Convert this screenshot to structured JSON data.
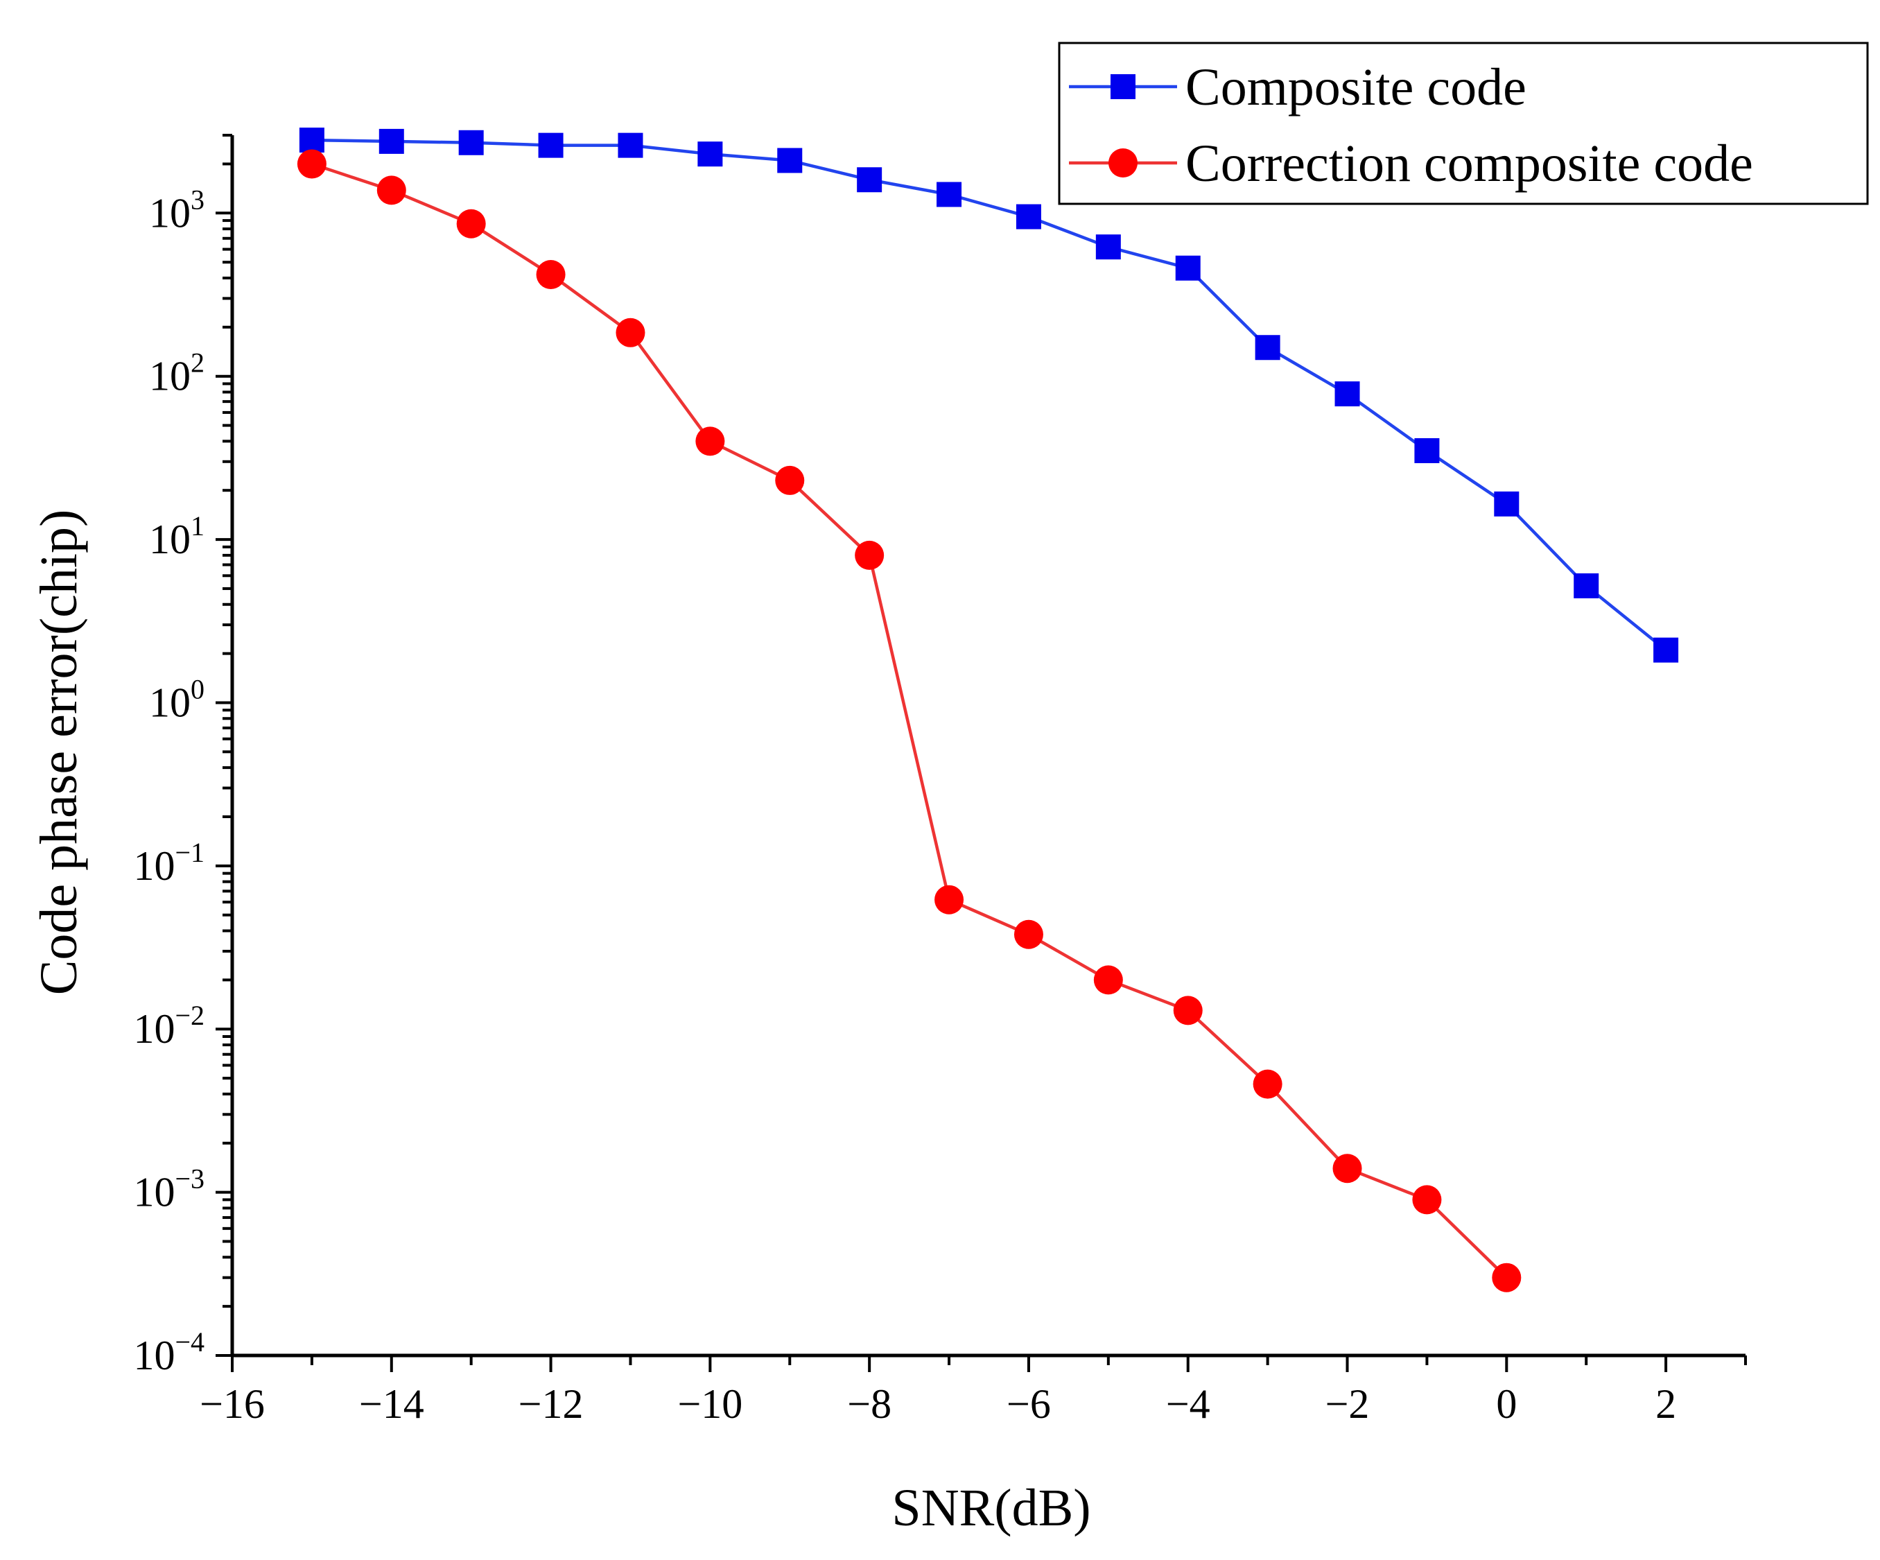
{
  "chart_data": {
    "type": "line",
    "title": "",
    "xlabel": "SNR(dB)",
    "ylabel": "Code phase error(chip)",
    "yscale": "log",
    "xlim": [
      -16,
      3
    ],
    "ylim": [
      0.0001,
      3000
    ],
    "x_ticks": [
      -16,
      -14,
      -12,
      -10,
      -8,
      -6,
      -4,
      -2,
      0,
      2
    ],
    "x_tick_labels": [
      "−16",
      "−14",
      "−12",
      "−10",
      "−8",
      "−6",
      "−4",
      "−2",
      "0",
      "2"
    ],
    "y_ticks": [
      {
        "value": 0.0001,
        "base": "10",
        "exp": "−4"
      },
      {
        "value": 0.001,
        "base": "10",
        "exp": "−3"
      },
      {
        "value": 0.01,
        "base": "10",
        "exp": "−2"
      },
      {
        "value": 0.1,
        "base": "10",
        "exp": "−1"
      },
      {
        "value": 1,
        "base": "10",
        "exp": "0"
      },
      {
        "value": 10,
        "base": "10",
        "exp": "1"
      },
      {
        "value": 100,
        "base": "10",
        "exp": "2"
      },
      {
        "value": 1000,
        "base": "10",
        "exp": "3"
      }
    ],
    "grid": false,
    "legend_position": "top-right",
    "series": [
      {
        "name": "Composite code",
        "color": "#0000ee",
        "line_color": "#2244ee",
        "marker": "square",
        "x": [
          -15,
          -14,
          -13,
          -12,
          -11,
          -10,
          -9,
          -8,
          -7,
          -6,
          -5,
          -4,
          -3,
          -2,
          -1,
          0,
          1,
          2
        ],
        "values": [
          2800,
          2750,
          2700,
          2600,
          2600,
          2300,
          2100,
          1600,
          1300,
          950,
          620,
          460,
          150,
          78,
          35,
          16.5,
          5.2,
          2.1
        ]
      },
      {
        "name": "Correction composite code",
        "color": "#ff0000",
        "line_color": "#ee3333",
        "marker": "circle",
        "x": [
          -15,
          -14,
          -13,
          -12,
          -11,
          -10,
          -9,
          -8,
          -7,
          -6,
          -5,
          -4,
          -3,
          -2,
          -1,
          0
        ],
        "values": [
          2000,
          1380,
          860,
          420,
          185,
          40,
          23,
          8,
          0.062,
          0.038,
          0.02,
          0.013,
          0.0046,
          0.0014,
          0.0009,
          0.0003
        ]
      }
    ]
  }
}
